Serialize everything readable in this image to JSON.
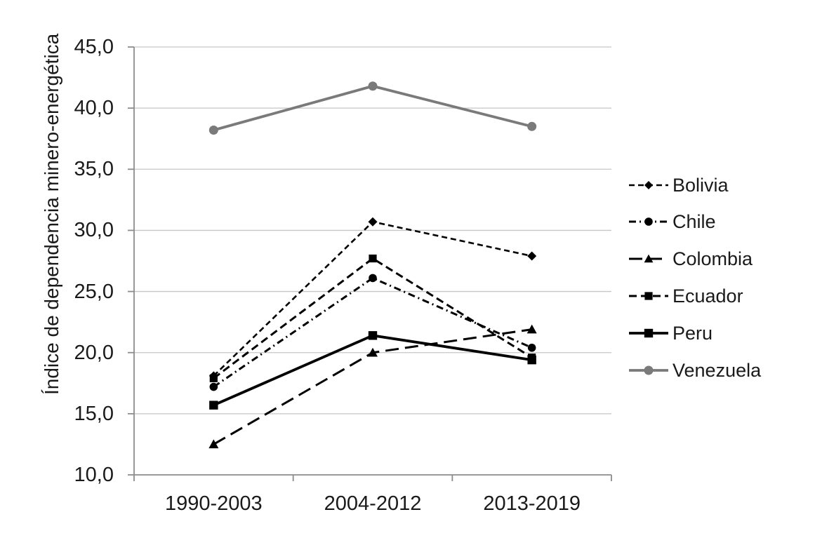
{
  "colors": {
    "background": "#ffffff",
    "gridline": "#c6c6c6",
    "axis": "#8c8c8c",
    "text": "#1a1a1a",
    "series_black": "#000000",
    "series_gray": "#7a7a7a"
  },
  "chart_data": {
    "type": "line",
    "title": "",
    "xlabel": "",
    "ylabel": "Índice de dependencia minero-energética",
    "categories": [
      "1990-2003",
      "2004-2012",
      "2013-2019"
    ],
    "y_tick_labels": [
      "10,0",
      "15,0",
      "20,0",
      "25,0",
      "30,0",
      "35,0",
      "40,0",
      "45,0"
    ],
    "y_tick_values": [
      10,
      15,
      20,
      25,
      30,
      35,
      40,
      45
    ],
    "ylim": [
      10,
      45
    ],
    "grid": true,
    "legend_position": "right",
    "series": [
      {
        "name": "Bolivia",
        "values": [
          18.1,
          30.7,
          27.9
        ],
        "color": "#000000",
        "dash": "short-dash",
        "marker": "diamond",
        "line_width": 2.6,
        "marker_size": 6.5
      },
      {
        "name": "Chile",
        "values": [
          17.2,
          26.1,
          20.4
        ],
        "color": "#000000",
        "dash": "dash-dot",
        "marker": "circle",
        "line_width": 3.0,
        "marker_size": 5.8
      },
      {
        "name": "Colombia",
        "values": [
          12.5,
          20.0,
          21.9
        ],
        "color": "#000000",
        "dash": "long-dash",
        "marker": "triangle",
        "line_width": 3.0,
        "marker_size": 7.0
      },
      {
        "name": "Ecuador",
        "values": [
          17.9,
          27.7,
          19.6
        ],
        "color": "#000000",
        "dash": "dash",
        "marker": "square",
        "line_width": 3.0,
        "marker_size": 5.6
      },
      {
        "name": "Peru",
        "values": [
          15.7,
          21.4,
          19.4
        ],
        "color": "#000000",
        "dash": "solid",
        "marker": "square",
        "line_width": 3.8,
        "marker_size": 6.2
      },
      {
        "name": "Venezuela",
        "values": [
          38.2,
          41.8,
          38.5
        ],
        "color": "#7a7a7a",
        "dash": "solid",
        "marker": "circle",
        "line_width": 3.8,
        "marker_size": 6.5
      }
    ]
  }
}
